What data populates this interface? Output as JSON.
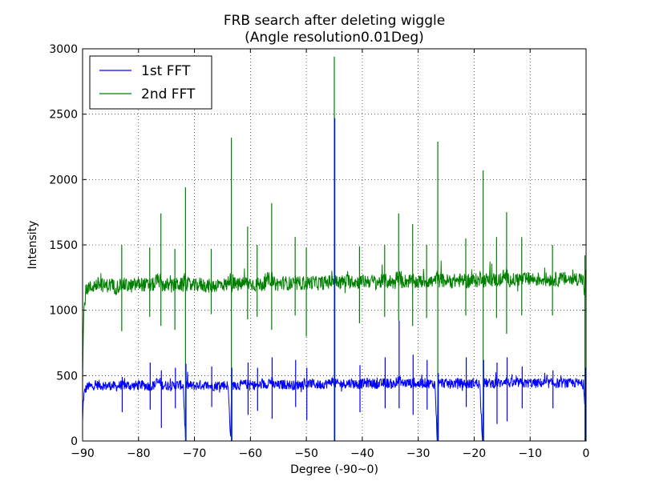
{
  "chart_data": {
    "type": "line",
    "title": "FRB search after deleting wiggle",
    "subtitle": "(Angle resolution0.01Deg)",
    "xlabel": "Degree (-90~0)",
    "ylabel": "Intensity",
    "xlim": [
      -90,
      0
    ],
    "ylim": [
      0,
      3000
    ],
    "xticks": [
      -90,
      -80,
      -70,
      -60,
      -50,
      -40,
      -30,
      -20,
      -10,
      0
    ],
    "xtick_labels": [
      "−90",
      "−80",
      "−70",
      "−60",
      "−50",
      "−40",
      "−30",
      "−20",
      "−10",
      "0"
    ],
    "yticks": [
      0,
      500,
      1000,
      1500,
      2000,
      2500,
      3000
    ],
    "ytick_labels": [
      "0",
      "500",
      "1000",
      "1500",
      "2000",
      "2500",
      "3000"
    ],
    "grid": true,
    "legend_position": "top-left",
    "series": [
      {
        "name": "1st FFT",
        "color": "#0000ff",
        "baseline": 425,
        "x": [
          -90,
          -89.9,
          -89.8,
          -89.6,
          -89.4,
          -89.2,
          -89,
          -88.5,
          -88,
          -87,
          -86,
          -85,
          -84,
          -83,
          -82,
          -81,
          -80,
          -79,
          -78,
          -77,
          -76.2,
          -76,
          -75,
          -74,
          -73,
          -72,
          -71.6,
          -71.5,
          -71,
          -70,
          -69,
          -68,
          -67,
          -66,
          -65,
          -64,
          -63.5,
          -63.4,
          -63,
          -62,
          -61,
          -60,
          -59,
          -58,
          -57,
          -56.2,
          -56,
          -55,
          -54,
          -53,
          -52,
          -51,
          -50,
          -49,
          -48,
          -47,
          -46,
          -45.1,
          -45,
          -44.9,
          -44,
          -43,
          -42,
          -41,
          -40,
          -39,
          -38,
          -37,
          -36,
          -35,
          -34,
          -33.5,
          -33,
          -32,
          -31,
          -30,
          -29,
          -28,
          -27,
          -26.6,
          -26.5,
          -26,
          -25,
          -24,
          -23,
          -22,
          -21,
          -20,
          -19,
          -18.5,
          -18.4,
          -18,
          -17,
          -16,
          -15,
          -14.2,
          -14,
          -13,
          -12,
          -11,
          -10,
          -9,
          -8,
          -7,
          -6,
          -5,
          -4,
          -3,
          -2,
          -1,
          -0.5,
          -0.2,
          0
        ],
        "values": [
          130,
          280,
          340,
          380,
          400,
          410,
          420,
          415,
          425,
          430,
          420,
          425,
          415,
          430,
          425,
          420,
          430,
          425,
          420,
          430,
          540,
          430,
          425,
          420,
          430,
          425,
          0,
          430,
          425,
          420,
          430,
          425,
          420,
          425,
          430,
          425,
          0,
          420,
          430,
          425,
          435,
          430,
          425,
          430,
          435,
          540,
          430,
          425,
          435,
          430,
          425,
          435,
          430,
          440,
          430,
          435,
          440,
          500,
          2470,
          440,
          435,
          440,
          445,
          435,
          440,
          445,
          440,
          435,
          445,
          440,
          430,
          920,
          440,
          445,
          440,
          435,
          445,
          440,
          435,
          0,
          440,
          445,
          440,
          435,
          445,
          440,
          435,
          445,
          440,
          0,
          440,
          445,
          440,
          445,
          440,
          520,
          445,
          440,
          445,
          440,
          445,
          440,
          445,
          440,
          445,
          440,
          445,
          440,
          445,
          440,
          430,
          300,
          560
        ]
      },
      {
        "name": "2nd FFT",
        "color": "#008000",
        "baseline": 1200,
        "x": [
          -90,
          -89.9,
          -89.8,
          -89.6,
          -89.4,
          -89.2,
          -89,
          -88.5,
          -88,
          -87,
          -86,
          -85,
          -84,
          -83,
          -82,
          -81,
          -80,
          -79,
          -78,
          -77,
          -76.2,
          -76,
          -75,
          -74,
          -73,
          -72,
          -71.6,
          -71.5,
          -71,
          -70,
          -69,
          -68,
          -67,
          -66,
          -65,
          -64,
          -63.5,
          -63.4,
          -63,
          -62,
          -61,
          -60,
          -59,
          -58,
          -57,
          -56.2,
          -56,
          -55,
          -54,
          -53,
          -52,
          -51,
          -50,
          -49,
          -48,
          -47,
          -46,
          -45.1,
          -45,
          -44.9,
          -44,
          -43,
          -42,
          -41,
          -40,
          -39,
          -38,
          -37,
          -36,
          -35,
          -34,
          -33.5,
          -33,
          -32,
          -31,
          -30,
          -29,
          -28,
          -27,
          -26.6,
          -26.5,
          -26,
          -25,
          -24,
          -23,
          -22,
          -21,
          -20,
          -19,
          -18.5,
          -18.4,
          -18,
          -17,
          -16,
          -15,
          -14.2,
          -14,
          -13,
          -12,
          -11,
          -10,
          -9,
          -8,
          -7,
          -6,
          -5,
          -4,
          -3,
          -2,
          -1,
          -0.5,
          -0.2,
          0
        ],
        "values": [
          420,
          750,
          950,
          1080,
          1130,
          1160,
          1180,
          1170,
          1190,
          1200,
          1185,
          1195,
          1175,
          1200,
          1190,
          1185,
          1205,
          1195,
          1190,
          1200,
          1740,
          1195,
          1190,
          1185,
          1200,
          1190,
          1940,
          1200,
          1195,
          1185,
          1200,
          1190,
          1185,
          1195,
          1200,
          1190,
          2320,
          1190,
          1200,
          1195,
          1210,
          1205,
          1195,
          1200,
          1210,
          1820,
          1205,
          1200,
          1210,
          1205,
          1195,
          1210,
          1205,
          1215,
          1205,
          1210,
          1215,
          1230,
          2940,
          1220,
          1215,
          1220,
          1225,
          1215,
          1220,
          1225,
          1220,
          1215,
          1225,
          1220,
          1210,
          1740,
          1220,
          1225,
          1220,
          1215,
          1225,
          1220,
          1215,
          2290,
          1225,
          1230,
          1225,
          1220,
          1230,
          1225,
          1220,
          1230,
          1225,
          2070,
          1225,
          1235,
          1230,
          1235,
          1230,
          1750,
          1235,
          1230,
          1240,
          1235,
          1240,
          1235,
          1240,
          1235,
          1240,
          1235,
          1240,
          1235,
          1240,
          1245,
          1230,
          1100,
          1420
        ]
      }
    ],
    "spikes": [
      {
        "x": -83,
        "lo2": 840,
        "hi2": 1500,
        "lo1": 220,
        "hi1": 490
      },
      {
        "x": -78,
        "lo2": 950,
        "hi2": 1480,
        "lo1": 240,
        "hi1": 600
      },
      {
        "x": -76,
        "lo2": 880,
        "hi2": 1740,
        "lo1": 100,
        "hi1": 540
      },
      {
        "x": -73.5,
        "lo2": 850,
        "hi2": 1470,
        "lo1": 250,
        "hi1": 560
      },
      {
        "x": -71.6,
        "lo2": 0,
        "hi2": 1940,
        "lo1": 0,
        "hi1": 590
      },
      {
        "x": -67,
        "lo2": 970,
        "hi2": 1470,
        "lo1": 260,
        "hi1": 570
      },
      {
        "x": -63.4,
        "lo2": 0,
        "hi2": 2320,
        "lo1": 0,
        "hi1": 560
      },
      {
        "x": -60.5,
        "lo2": 930,
        "hi2": 1640,
        "lo1": 200,
        "hi1": 600
      },
      {
        "x": -58.8,
        "lo2": 950,
        "hi2": 1500,
        "lo1": 230,
        "hi1": 560
      },
      {
        "x": -56.2,
        "lo2": 850,
        "hi2": 1820,
        "lo1": 170,
        "hi1": 640
      },
      {
        "x": -52,
        "lo2": 960,
        "hi2": 1560,
        "lo1": 260,
        "hi1": 620
      },
      {
        "x": -50,
        "lo2": 800,
        "hi2": 1480,
        "lo1": 160,
        "hi1": 560
      },
      {
        "x": -45,
        "lo2": 0,
        "hi2": 2940,
        "lo1": 0,
        "hi1": 2470
      },
      {
        "x": -40.5,
        "lo2": 900,
        "hi2": 1490,
        "lo1": 220,
        "hi1": 580
      },
      {
        "x": -36,
        "lo2": 950,
        "hi2": 1500,
        "lo1": 250,
        "hi1": 640
      },
      {
        "x": -33.5,
        "lo2": 920,
        "hi2": 1740,
        "lo1": 250,
        "hi1": 920
      },
      {
        "x": -31,
        "lo2": 880,
        "hi2": 1660,
        "lo1": 200,
        "hi1": 660
      },
      {
        "x": -28.5,
        "lo2": 940,
        "hi2": 1500,
        "lo1": 240,
        "hi1": 620
      },
      {
        "x": -26.5,
        "lo2": 0,
        "hi2": 2290,
        "lo1": 0,
        "hi1": 520
      },
      {
        "x": -21.5,
        "lo2": 960,
        "hi2": 1550,
        "lo1": 260,
        "hi1": 640
      },
      {
        "x": -18.4,
        "lo2": 0,
        "hi2": 2070,
        "lo1": 0,
        "hi1": 620
      },
      {
        "x": -16,
        "lo2": 940,
        "hi2": 1560,
        "lo1": 130,
        "hi1": 600
      },
      {
        "x": -14.2,
        "lo2": 820,
        "hi2": 1750,
        "lo1": 150,
        "hi1": 640
      },
      {
        "x": -11.5,
        "lo2": 960,
        "hi2": 1560,
        "lo1": 250,
        "hi1": 570
      },
      {
        "x": -6,
        "lo2": 960,
        "hi2": 1500,
        "lo1": 250,
        "hi1": 540
      },
      {
        "x": -0.2,
        "lo2": 0,
        "hi2": 1420,
        "lo1": 0,
        "hi1": 560
      }
    ]
  }
}
